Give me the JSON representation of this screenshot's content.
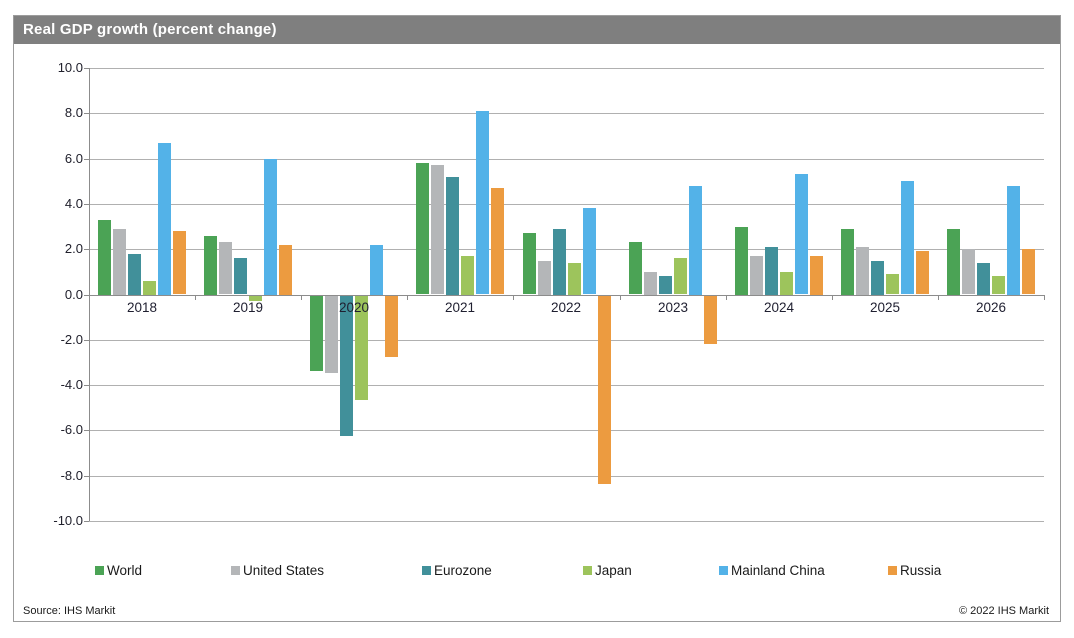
{
  "title": "Real GDP growth (percent change)",
  "footer": {
    "source": "Source: IHS Markit",
    "copyright": "© 2022  IHS Markit"
  },
  "colors": {
    "titlebar_bg": "#7f7f7f",
    "titlebar_text": "#ffffff",
    "gridline": "#b0b0b0",
    "axis": "#8c8c8c"
  },
  "chart_data": {
    "type": "bar",
    "title": "Real GDP growth (percent change)",
    "categories": [
      "2018",
      "2019",
      "2020",
      "2021",
      "2022",
      "2023",
      "2024",
      "2025",
      "2026"
    ],
    "series": [
      {
        "name": "World",
        "color": "#4ba355",
        "values": [
          3.3,
          2.6,
          -3.3,
          5.8,
          2.7,
          2.3,
          3.0,
          2.9,
          2.9
        ]
      },
      {
        "name": "United States",
        "color": "#b4b6b8",
        "values": [
          2.9,
          2.3,
          -3.4,
          5.7,
          1.5,
          1.0,
          1.7,
          2.1,
          2.0
        ]
      },
      {
        "name": "Eurozone",
        "color": "#41909a",
        "values": [
          1.8,
          1.6,
          -6.2,
          5.2,
          2.9,
          0.8,
          2.1,
          1.5,
          1.4
        ]
      },
      {
        "name": "Japan",
        "color": "#9dc45c",
        "values": [
          0.6,
          -0.2,
          -4.6,
          1.7,
          1.4,
          1.6,
          1.0,
          0.9,
          0.8
        ]
      },
      {
        "name": "Mainland China",
        "color": "#53b2e8",
        "values": [
          6.7,
          6.0,
          2.2,
          8.1,
          3.8,
          4.8,
          5.3,
          5.0,
          4.8
        ]
      },
      {
        "name": "Russia",
        "color": "#ec9b40",
        "values": [
          2.8,
          2.2,
          -2.7,
          4.7,
          -8.3,
          -2.1,
          1.7,
          1.9,
          2.0
        ]
      }
    ],
    "xlabel": "",
    "ylabel": "",
    "ylim": [
      -10,
      10
    ],
    "ytick_step": 2,
    "ytick_labels": [
      "10.0",
      "8.0",
      "6.0",
      "4.0",
      "2.0",
      "0.0",
      "-2.0",
      "-4.0",
      "-6.0",
      "-8.0",
      "-10.0"
    ],
    "grid": "horizontal",
    "legend_position": "bottom"
  }
}
